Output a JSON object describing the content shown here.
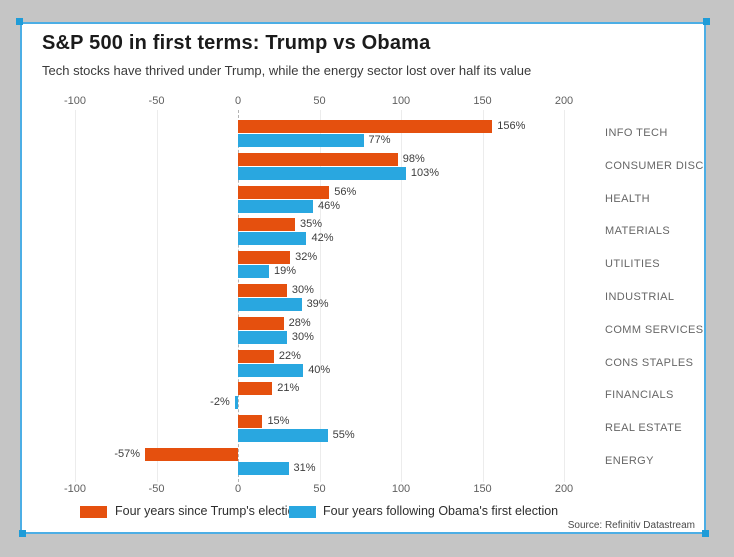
{
  "page": {
    "title": "S&P 500 in first terms: Trump vs Obama",
    "subtitle": "Tech stocks have thrived under Trump, while the energy sector lost over half its value",
    "source": "Source: Refinitiv Datastream"
  },
  "colors": {
    "trump_orange": "#e5500e",
    "obama_blue": "#29a7e0",
    "card_border_blue": "#4caee5",
    "selection_handle_blue": "#1f9cd8",
    "page_background": "#c5c5c5"
  },
  "chart_data": {
    "type": "bar",
    "orientation": "horizontal",
    "title": "S&P 500 in first terms: Trump vs Obama",
    "subtitle": "Tech stocks have thrived under Trump, while the energy sector lost over half its value",
    "categories": [
      "INFO TECH",
      "CONSUMER DISC",
      "HEALTH",
      "MATERIALS",
      "UTILITIES",
      "INDUSTRIAL",
      "COMM SERVICES",
      "CONS STAPLES",
      "FINANCIALS",
      "REAL ESTATE",
      "ENERGY"
    ],
    "series": [
      {
        "name": "Four years since Trump's election",
        "color": "#e5500e",
        "values": [
          156,
          98,
          56,
          35,
          32,
          30,
          28,
          22,
          21,
          15,
          -57
        ]
      },
      {
        "name": "Four years following Obama's first election",
        "color": "#29a7e0",
        "values": [
          77,
          103,
          46,
          42,
          19,
          39,
          30,
          40,
          -2,
          55,
          31
        ]
      }
    ],
    "value_suffix": "%",
    "xticks": [
      -100,
      -50,
      0,
      50,
      100,
      150,
      200
    ],
    "xlim": [
      -100,
      200
    ],
    "axis_label_positions": [
      "top",
      "bottom"
    ],
    "grid": true,
    "zero_line_style": "dashed",
    "legend_position": "bottom",
    "category_label_position": "right"
  }
}
